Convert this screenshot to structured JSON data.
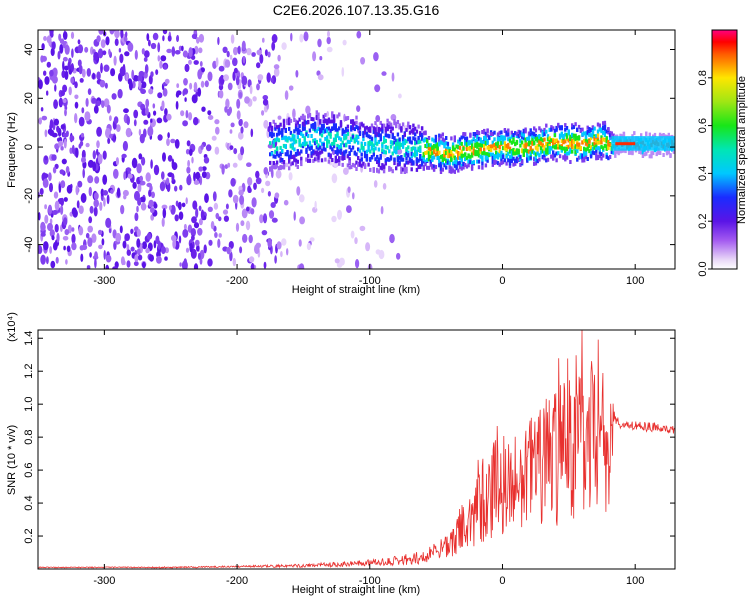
{
  "title": "C2E6.2026.107.13.35.G16",
  "chart_data": [
    {
      "type": "heatmap",
      "xlabel": "Height of straight line (km)",
      "ylabel": "Frequency (Hz)",
      "xlim": [
        -350,
        130
      ],
      "ylim": [
        -50,
        48
      ],
      "xticks": [
        -300,
        -200,
        -100,
        0,
        100
      ],
      "yticks": [
        -40,
        -20,
        0,
        20,
        40
      ],
      "ridge": {
        "x": [
          -180,
          -160,
          -140,
          -120,
          -100,
          -80,
          -60,
          -40,
          -20,
          0,
          20,
          40,
          60,
          75,
          80,
          100,
          130
        ],
        "freq": [
          0,
          2,
          4,
          3,
          0,
          0,
          -1,
          -3,
          -1,
          0,
          0,
          2,
          1,
          3,
          1,
          1,
          1
        ]
      },
      "colorbar": {
        "label": "Normalized spectral amplitude",
        "range": [
          0,
          1
        ],
        "ticks": [
          0.0,
          0.2,
          0.4,
          0.6,
          0.8
        ],
        "tick_labels": [
          "0.0",
          "0.2",
          "0.4",
          "0.6",
          "0.8"
        ]
      }
    },
    {
      "type": "line",
      "xlabel": "Height of straight line (km)",
      "ylabel": "SNR (10 * v/v)",
      "scale_label": "(x10⁴)",
      "xlim": [
        -350,
        130
      ],
      "ylim": [
        0,
        1.45
      ],
      "xticks": [
        -300,
        -200,
        -100,
        0,
        100
      ],
      "yticks": [
        0.2,
        0.4,
        0.6,
        0.8,
        1.0,
        1.2,
        1.4
      ],
      "ytick_labels": [
        "0.2",
        "0.4",
        "0.6",
        "0.8",
        "1.0",
        "1.2",
        "1.4"
      ],
      "color": "#e8302e",
      "series": [
        {
          "name": "SNR",
          "x": [
            -350,
            -300,
            -250,
            -200,
            -150,
            -120,
            -100,
            -80,
            -60,
            -50,
            -40,
            -30,
            -20,
            -10,
            0,
            10,
            20,
            30,
            40,
            50,
            60,
            70,
            80,
            85,
            90,
            100,
            110,
            120,
            130
          ],
          "mean": [
            0.01,
            0.01,
            0.01,
            0.015,
            0.02,
            0.03,
            0.04,
            0.05,
            0.07,
            0.1,
            0.15,
            0.25,
            0.35,
            0.48,
            0.5,
            0.55,
            0.6,
            0.62,
            0.7,
            0.75,
            0.78,
            0.8,
            0.78,
            0.9,
            0.88,
            0.87,
            0.86,
            0.86,
            0.85
          ],
          "spread": [
            0.003,
            0.003,
            0.004,
            0.005,
            0.01,
            0.015,
            0.02,
            0.03,
            0.04,
            0.06,
            0.1,
            0.15,
            0.22,
            0.3,
            0.3,
            0.32,
            0.35,
            0.38,
            0.45,
            0.5,
            0.45,
            0.4,
            0.45,
            0.04,
            0.03,
            0.03,
            0.03,
            0.03,
            0.03
          ]
        }
      ]
    }
  ]
}
